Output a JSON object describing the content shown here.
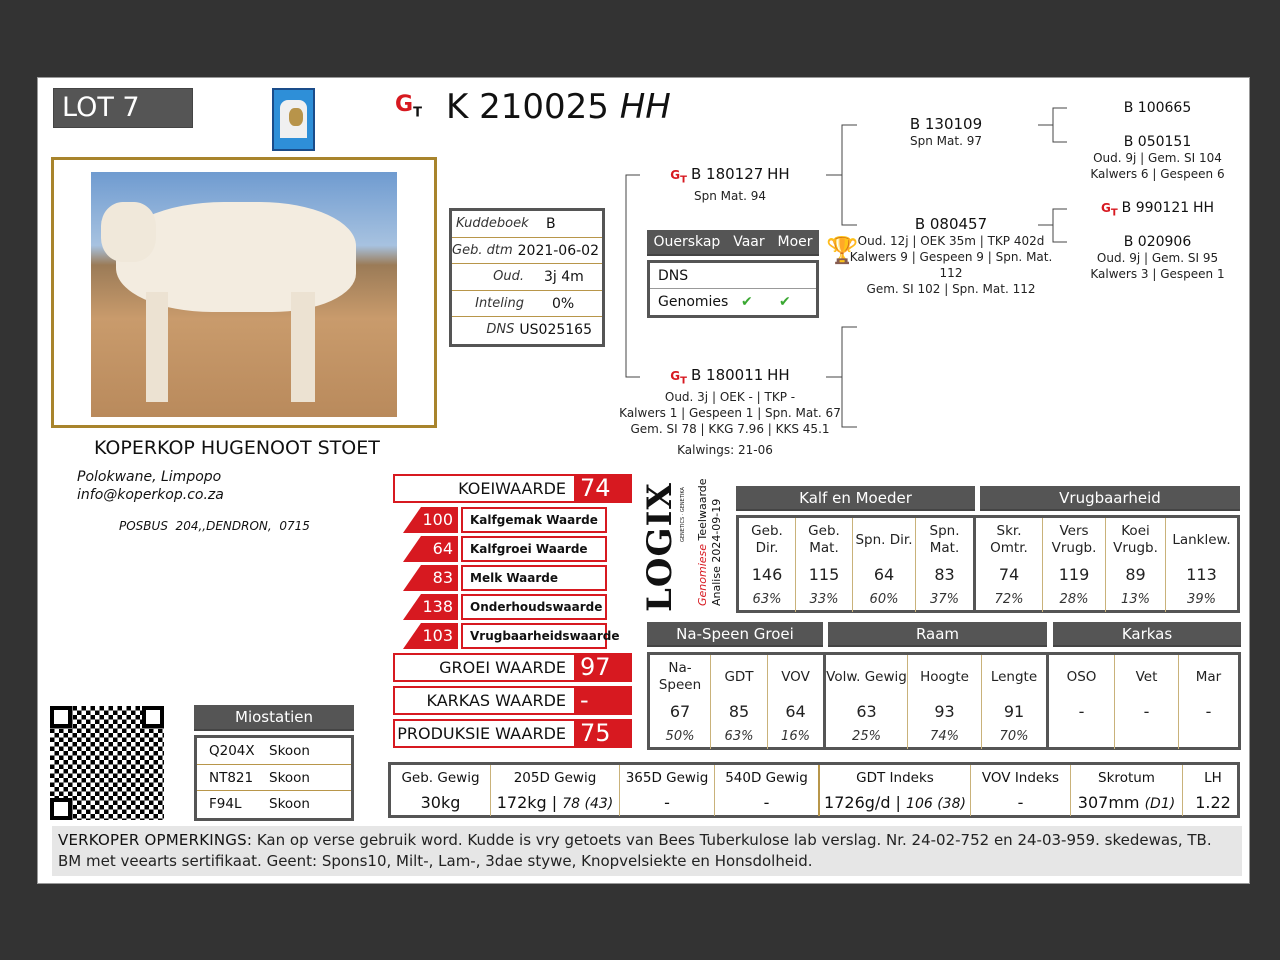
{
  "lot": "LOT 7 (M)",
  "animal": {
    "id": "K 210025",
    "breed_code": "HH",
    "gt_logo": "GT"
  },
  "stud_logo": "Hugenoot SS",
  "details": [
    {
      "label": "Kuddeboek",
      "value": "B"
    },
    {
      "label": "Geb. dtm",
      "value": "2021-06-02"
    },
    {
      "label": "Oud.",
      "value": "3j 4m"
    },
    {
      "label": "Inteling",
      "value": "0%"
    },
    {
      "label": "DNS",
      "value": "US025165"
    }
  ],
  "parentage": {
    "headers": [
      "Ouerskap",
      "Vaar",
      "Moer"
    ],
    "rows": [
      {
        "label": "DNS",
        "vaar": "",
        "moer": ""
      },
      {
        "label": "Genomies",
        "vaar": "✔",
        "moer": "✔"
      }
    ]
  },
  "pedigree": {
    "sire": {
      "id": "B 180127",
      "breed": "HH",
      "lines": [
        "Spn Mat. 94"
      ]
    },
    "dam": {
      "id": "B 180011",
      "breed": "HH",
      "lines": [
        "Oud. 3j | OEK - | TKP -",
        "Kalwers 1 | Gespeen 1 | Spn. Mat. 67",
        "Gem. SI 78 | KKG 7.96 | KKS 45.1"
      ],
      "kalwings": "Kalwings: 21-06"
    },
    "ss": {
      "id": "B 130109",
      "lines": [
        "Spn Mat. 97"
      ]
    },
    "sd": {
      "id": "B 080457",
      "lines": [
        "Oud. 12j | OEK 35m | TKP 402d",
        "Kalwers 9 | Gespeen 9 | Spn. Mat. 112",
        "Gem. SI 102 | Spn. Mat. 112"
      ]
    },
    "sss": {
      "id": "B 100665"
    },
    "ssd": {
      "id": "B 050151",
      "lines": [
        "Oud. 9j | Gem. SI 104",
        "Kalwers 6 | Gespeen 6"
      ]
    },
    "sds": {
      "id": "B 990121",
      "breed": "HH"
    },
    "sdd": {
      "id": "B 020906",
      "lines": [
        "Oud. 9j | Gem. SI 95",
        "Kalwers 3 | Gespeen 1"
      ]
    }
  },
  "breeder": {
    "name": "KOPERKOP HUGENOOT STOET",
    "location": "Polokwane, Limpopo",
    "email": "info@koperkop.co.za",
    "address": "POSBUS  204,,DENDRON,  0715"
  },
  "scores": {
    "koeiwaarde": {
      "label": "KOEIWAARDE",
      "value": "74"
    },
    "sub": [
      {
        "value": "100",
        "label": "Kalfgemak Waarde"
      },
      {
        "value": "64",
        "label": "Kalfgroei Waarde"
      },
      {
        "value": "83",
        "label": "Melk Waarde"
      },
      {
        "value": "138",
        "label": "Onderhoudswaarde"
      },
      {
        "value": "103",
        "label": "Vrugbaarheidswaarde"
      }
    ],
    "groei": {
      "label": "GROEI WAARDE",
      "value": "97"
    },
    "karkas": {
      "label": "KARKAS WAARDE",
      "value": "-"
    },
    "produksie": {
      "label": "PRODUKSIE WAARDE",
      "value": "75"
    }
  },
  "logix": {
    "logo": "LOGIX",
    "tag": "GENETICS · GENETIKA",
    "line1a": "Genomiese",
    "line1b": "Teelwaarde",
    "line2": "Analise 2024-09-19"
  },
  "kalf_moeder": {
    "title": "Kalf en Moeder",
    "cols": [
      {
        "label": "Geb. Dir.",
        "value": "146",
        "acc": "63%"
      },
      {
        "label": "Geb. Mat.",
        "value": "115",
        "acc": "33%"
      },
      {
        "label": "Spn. Dir.",
        "value": "64",
        "acc": "60%"
      },
      {
        "label": "Spn. Mat.",
        "value": "83",
        "acc": "37%"
      }
    ]
  },
  "vrugbaarheid": {
    "title": "Vrugbaarheid",
    "cols": [
      {
        "label": "Skr. Omtr.",
        "value": "74",
        "acc": "72%"
      },
      {
        "label": "Vers Vrugb.",
        "value": "119",
        "acc": "28%"
      },
      {
        "label": "Koei Vrugb.",
        "value": "89",
        "acc": "13%"
      },
      {
        "label": "Lanklew.",
        "value": "113",
        "acc": "39%"
      }
    ]
  },
  "naspeen": {
    "title": "Na-Speen Groei",
    "cols": [
      {
        "label": "Na- Speen",
        "value": "67",
        "acc": "50%"
      },
      {
        "label": "GDT",
        "value": "85",
        "acc": "63%"
      },
      {
        "label": "VOV",
        "value": "64",
        "acc": "16%"
      }
    ]
  },
  "raam": {
    "title": "Raam",
    "cols": [
      {
        "label": "Volw. Gewig",
        "value": "63",
        "acc": "25%"
      },
      {
        "label": "Hoogte",
        "value": "93",
        "acc": "74%"
      },
      {
        "label": "Lengte",
        "value": "91",
        "acc": "70%"
      }
    ]
  },
  "karkas": {
    "title": "Karkas",
    "cols": [
      {
        "label": "OSO",
        "value": "-",
        "acc": ""
      },
      {
        "label": "Vet",
        "value": "-",
        "acc": ""
      },
      {
        "label": "Mar",
        "value": "-",
        "acc": ""
      }
    ]
  },
  "weights": [
    {
      "label": "Geb. Gewig",
      "value": "30kg",
      "extra": ""
    },
    {
      "label": "205D Gewig",
      "value": "172kg | ",
      "extra": "78 (43)"
    },
    {
      "label": "365D Gewig",
      "value": "-",
      "extra": ""
    },
    {
      "label": "540D Gewig",
      "value": "-",
      "extra": ""
    },
    {
      "label": "GDT Indeks",
      "value": "1726g/d | ",
      "extra": "106 (38)"
    },
    {
      "label": "VOV Indeks",
      "value": "-",
      "extra": ""
    },
    {
      "label": "Skrotum",
      "value": "307mm ",
      "extra": "(D1)"
    },
    {
      "label": "LH",
      "value": "1.22",
      "extra": ""
    }
  ],
  "miostatien": {
    "title": "Miostatien",
    "rows": [
      {
        "gene": "Q204X",
        "status": "Skoon"
      },
      {
        "gene": "NT821",
        "status": "Skoon"
      },
      {
        "gene": "F94L",
        "status": "Skoon"
      }
    ]
  },
  "remarks": {
    "label": "VERKOPER OPMERKINGS:",
    "text": " Kan op verse gebruik word. Kudde is vry getoets van Bees Tuberkulose lab verslag. Nr. 24-02-752 en 24-03-959. skedewas, TB. BM met veearts sertifikaat. Geent: Spons10, Milt-, Lam-, 3dae stywe, Knopvelsiekte en Honsdolheid."
  },
  "colors": {
    "red": "#d71920",
    "header_gray": "#555555",
    "gold_border": "#a8842c",
    "check_green": "#3aa832"
  }
}
